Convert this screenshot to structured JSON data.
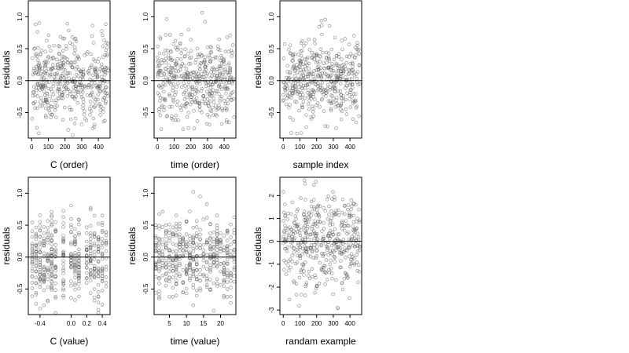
{
  "chart_data": [
    {
      "type": "scatter",
      "xlabel": "C (order)",
      "ylabel": "residuals",
      "xlim": [
        -20,
        470
      ],
      "ylim": [
        -0.9,
        1.25
      ],
      "xticks": [
        0,
        100,
        200,
        300,
        400
      ],
      "xtick_labels": [
        "0",
        "100",
        "200",
        "300",
        "400"
      ],
      "yticks": [
        -0.5,
        0.0,
        0.5,
        1.0
      ],
      "ytick_labels": [
        "-0.5",
        "0.0",
        "0.5",
        "1.0"
      ],
      "hline": 0,
      "x_kind": "index",
      "n": 460,
      "y_scale": 0.33
    },
    {
      "type": "scatter",
      "xlabel": "time (order)",
      "ylabel": "residuals",
      "xlim": [
        -20,
        470
      ],
      "ylim": [
        -0.9,
        1.25
      ],
      "xticks": [
        0,
        100,
        200,
        300,
        400
      ],
      "xtick_labels": [
        "0",
        "100",
        "200",
        "300",
        "400"
      ],
      "yticks": [
        -0.5,
        0.0,
        0.5,
        1.0
      ],
      "ytick_labels": [
        "-0.5",
        "0.0",
        "0.5",
        "1.0"
      ],
      "hline": 0,
      "x_kind": "index",
      "n": 460,
      "y_scale": 0.33
    },
    {
      "type": "scatter",
      "xlabel": "sample index",
      "ylabel": "residuals",
      "xlim": [
        -20,
        470
      ],
      "ylim": [
        -0.9,
        1.25
      ],
      "xticks": [
        0,
        100,
        200,
        300,
        400
      ],
      "xtick_labels": [
        "0",
        "100",
        "200",
        "300",
        "400"
      ],
      "yticks": [
        -0.5,
        0.0,
        0.5,
        1.0
      ],
      "ytick_labels": [
        "-0.5",
        "0.0",
        "0.5",
        "1.0"
      ],
      "hline": 0,
      "x_kind": "index",
      "n": 460,
      "y_scale": 0.33
    },
    {
      "type": "scatter",
      "xlabel": "C (value)",
      "ylabel": "residuals",
      "xlim": [
        -0.55,
        0.5
      ],
      "ylim": [
        -0.9,
        1.25
      ],
      "xticks": [
        -0.4,
        0.0,
        0.2,
        0.4
      ],
      "xtick_labels": [
        "-0.4",
        "0.0",
        "0.2",
        "0.4"
      ],
      "yticks": [
        -0.5,
        0.0,
        0.5,
        1.0
      ],
      "ytick_labels": [
        "-0.5",
        "0.0",
        "0.5",
        "1.0"
      ],
      "hline": 0,
      "x_kind": "discrete",
      "x_levels": [
        -0.5,
        -0.45,
        -0.4,
        -0.35,
        -0.3,
        -0.25,
        -0.2,
        -0.1,
        0.0,
        0.05,
        0.1,
        0.2,
        0.25,
        0.3,
        0.35,
        0.4,
        0.45
      ],
      "n": 460,
      "y_scale": 0.33
    },
    {
      "type": "scatter",
      "xlabel": "time (value)",
      "ylabel": "residuals",
      "xlim": [
        0.5,
        24.5
      ],
      "ylim": [
        -0.9,
        1.25
      ],
      "xticks": [
        5,
        10,
        15,
        20
      ],
      "xtick_labels": [
        "5",
        "10",
        "15",
        "20"
      ],
      "yticks": [
        -0.5,
        0.0,
        0.5,
        1.0
      ],
      "ytick_labels": [
        "-0.5",
        "0.0",
        "0.5",
        "1.0"
      ],
      "hline": 0,
      "x_kind": "discrete",
      "x_levels": [
        1,
        2,
        3,
        4,
        5,
        6,
        7,
        8,
        9,
        10,
        11,
        12,
        13,
        14,
        15,
        16,
        17,
        18,
        19,
        20,
        21,
        22,
        23,
        24
      ],
      "n": 460,
      "y_scale": 0.33
    },
    {
      "type": "scatter",
      "xlabel": "randam example",
      "ylabel": "residuals",
      "xlim": [
        -20,
        470
      ],
      "ylim": [
        -3.2,
        2.8
      ],
      "xticks": [
        0,
        100,
        200,
        300,
        400
      ],
      "xtick_labels": [
        "0",
        "100",
        "200",
        "300",
        "400"
      ],
      "yticks": [
        -3,
        -2,
        -1,
        0,
        1,
        2
      ],
      "ytick_labels": [
        "-3",
        "-2",
        "-1",
        "0",
        "1",
        "2"
      ],
      "hline": 0,
      "x_kind": "index",
      "n": 460,
      "y_scale": 1.0
    }
  ]
}
